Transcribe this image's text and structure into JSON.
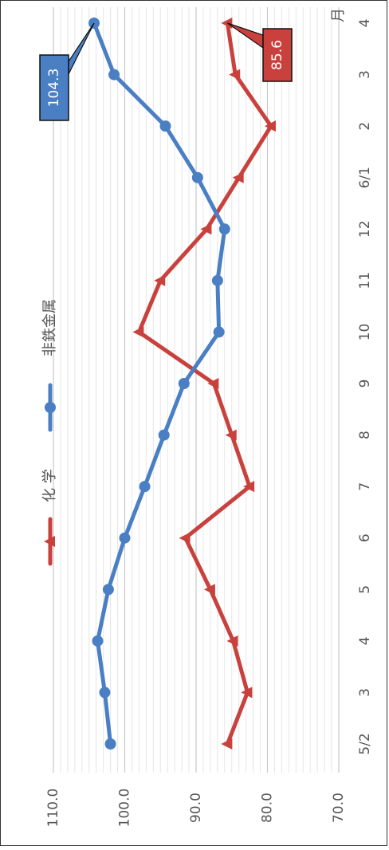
{
  "chart_data": {
    "type": "line",
    "orientation": "rotated-90-clockwise",
    "x_unit": "月",
    "categories": [
      "5/2",
      "3",
      "4",
      "5",
      "6",
      "7",
      "8",
      "9",
      "10",
      "11",
      "12",
      "6/1",
      "2",
      "3",
      "4"
    ],
    "ylim": [
      70,
      110
    ],
    "yticks": [
      "70.0",
      "80.0",
      "90.0",
      "100.0",
      "110.0"
    ],
    "grid": "minor gridlines",
    "legend_position": "top",
    "series": [
      {
        "name": "化 学",
        "color": "#c9413d",
        "marker": "triangle",
        "values": [
          85.6,
          82.8,
          84.8,
          88.0,
          91.5,
          82.5,
          85.0,
          87.5,
          98.0,
          95.0,
          88.5,
          84.0,
          79.5,
          84.5,
          85.6
        ],
        "callout": {
          "index": 14,
          "label": "85.6"
        }
      },
      {
        "name": "非鉄金属",
        "color": "#4a7fc4",
        "marker": "circle",
        "values": [
          102.0,
          102.8,
          103.8,
          102.3,
          100.0,
          97.2,
          94.5,
          91.7,
          86.8,
          87.0,
          86.0,
          89.8,
          94.3,
          101.5,
          104.3
        ],
        "callout": {
          "index": 14,
          "label": "104.3"
        }
      }
    ]
  }
}
